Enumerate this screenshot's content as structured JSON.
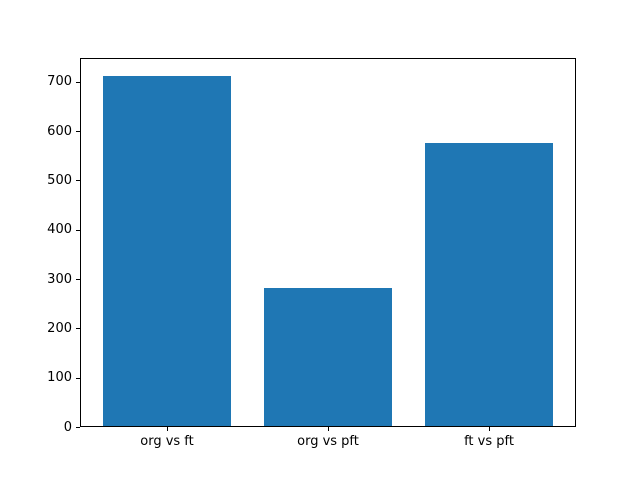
{
  "chart_data": {
    "type": "bar",
    "categories": [
      "org vs ft",
      "org vs pft",
      "ft vs pft"
    ],
    "values": [
      712,
      281,
      575
    ],
    "title": "",
    "xlabel": "",
    "ylabel": "",
    "ylim": [
      0,
      748
    ],
    "yticks": [
      0,
      100,
      200,
      300,
      400,
      500,
      600,
      700
    ],
    "legend": null,
    "grid": false,
    "bar_color": "#1f77b4",
    "background_color": "#ffffff",
    "spine_color": "#000000"
  }
}
